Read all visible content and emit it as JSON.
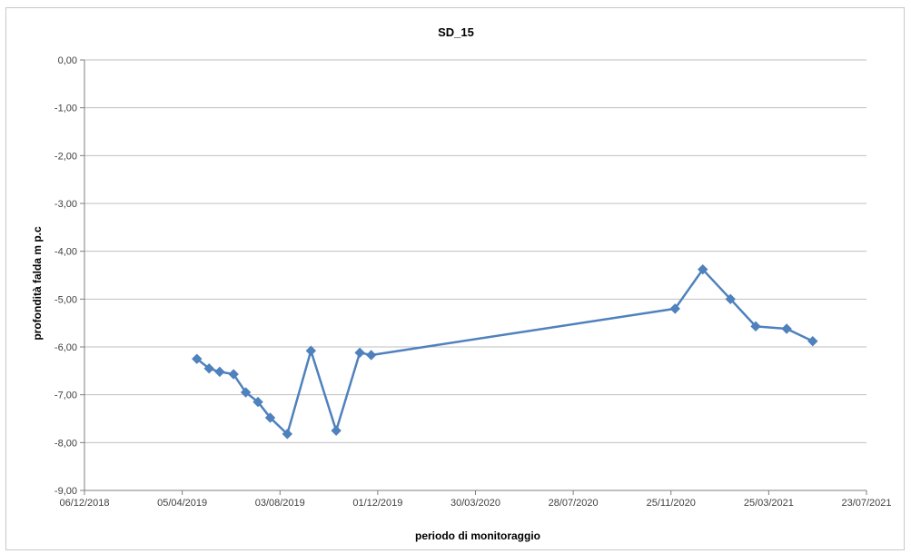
{
  "chart_data": {
    "type": "line",
    "title": "SD_15",
    "xlabel": "periodo di monitoraggio",
    "ylabel": "profondità falda m p.c",
    "y_ticks": [
      0,
      -1,
      -2,
      -3,
      -4,
      -5,
      -6,
      -7,
      -8,
      -9
    ],
    "y_tick_labels": [
      "0,00",
      "-1,00",
      "-2,00",
      "-3,00",
      "-4,00",
      "-5,00",
      "-6,00",
      "-7,00",
      "-8,00",
      "-9,00"
    ],
    "ylim": [
      -9,
      0
    ],
    "x_ticks": [
      "2018-12-06",
      "2019-04-05",
      "2019-08-03",
      "2019-12-01",
      "2020-03-30",
      "2020-07-28",
      "2020-11-25",
      "2021-03-25",
      "2021-07-23"
    ],
    "x_tick_labels": [
      "06/12/2018",
      "05/04/2019",
      "03/08/2019",
      "01/12/2019",
      "30/03/2020",
      "28/07/2020",
      "25/11/2020",
      "25/03/2021",
      "23/07/2021"
    ],
    "xlim": [
      "2018-12-06",
      "2021-07-23"
    ],
    "grid": true,
    "color": "#4F81BD",
    "marker": "diamond",
    "series": [
      {
        "x": [
          "2019-04-23",
          "2019-05-08",
          "2019-05-21",
          "2019-06-07",
          "2019-06-22",
          "2019-07-07",
          "2019-07-22",
          "2019-08-12",
          "2019-09-10",
          "2019-10-11",
          "2019-11-09",
          "2019-11-23",
          "2020-11-30",
          "2021-01-03",
          "2021-02-06",
          "2021-03-09",
          "2021-04-16",
          "2021-05-18"
        ],
        "y": [
          -6.25,
          -6.45,
          -6.52,
          -6.57,
          -6.95,
          -7.15,
          -7.48,
          -7.82,
          -6.08,
          -7.75,
          -6.12,
          -6.17,
          -5.2,
          -4.38,
          -5.0,
          -5.57,
          -5.62,
          -5.88
        ]
      }
    ]
  }
}
